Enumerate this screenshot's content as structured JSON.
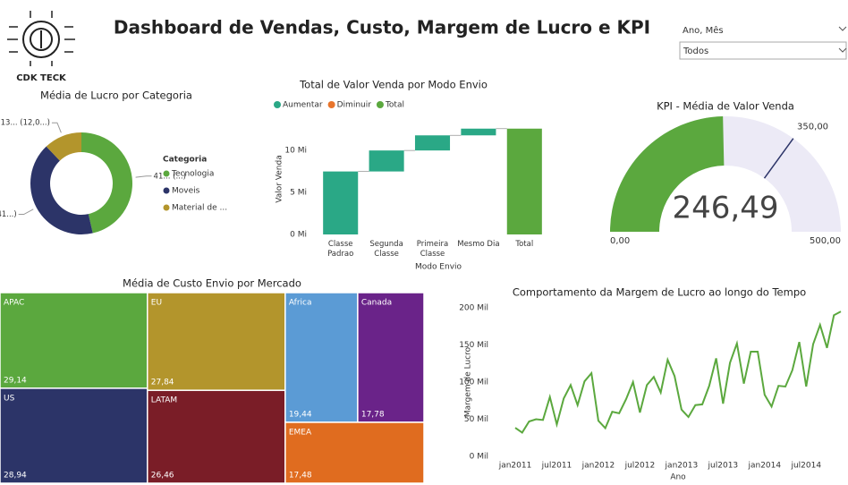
{
  "title": "Dashboard de Vendas, Custo, Margem de Lucro e KPI",
  "logo_text": "CDK TECK",
  "slicer": {
    "label": "Ano, Mês",
    "value": "Todos"
  },
  "chart_data": [
    {
      "type": "donut",
      "title": "Média de Lucro por Categoria",
      "legend_title": "Categoria",
      "categories": [
        "Tecnologia",
        "Moveis",
        "Material de ..."
      ],
      "values": [
        415,
        371,
        108.13
      ],
      "value_labels": [
        "41... (...)",
        "371,... (41...)",
        "108,13... (12,0...)"
      ],
      "colors": [
        "#5ba83e",
        "#2c3468",
        "#b3952c"
      ]
    },
    {
      "type": "waterfall",
      "title": "Total de Valor Venda por Modo Envio",
      "xlabel": "Modo Envio",
      "ylabel": "Valor Venda",
      "categories": [
        "Classe Padrao",
        "Segunda Classe",
        "Primeira Classe",
        "Mesmo Dia",
        "Total"
      ],
      "series": [
        {
          "name": "Aumentar",
          "color": "#2aa886",
          "values": [
            7.5,
            2.5,
            1.8,
            0.8,
            null
          ]
        },
        {
          "name": "Diminuir",
          "color": "#e8742b",
          "values": [
            null,
            null,
            null,
            null,
            null
          ]
        },
        {
          "name": "Total",
          "color": "#5ba83e",
          "values": [
            null,
            null,
            null,
            null,
            12.6
          ]
        }
      ],
      "ylim": [
        0,
        13
      ],
      "yticks": [
        {
          "value": 0,
          "label": "0 Mi"
        },
        {
          "value": 5,
          "label": "5 Mi"
        },
        {
          "value": 10,
          "label": "10 Mi"
        }
      ]
    },
    {
      "type": "gauge",
      "title": "KPI - Média de Valor Venda",
      "value": 246.49,
      "value_label": "246,49",
      "ylim": [
        0,
        500
      ],
      "yticks": [
        {
          "value": 0,
          "label": "0,00"
        },
        {
          "value": 500,
          "label": "500,00"
        }
      ],
      "target": {
        "value": 350,
        "label": "350,00"
      },
      "color": "#5ba83e",
      "track_color": "#eceaf6",
      "target_color": "#2c3468"
    },
    {
      "type": "treemap",
      "title": "Média de Custo Envio por Mercado",
      "categories": [
        "APAC",
        "US",
        "EU",
        "LATAM",
        "Africa",
        "Canada",
        "EMEA"
      ],
      "values": [
        29.14,
        28.94,
        27.84,
        26.46,
        19.44,
        17.78,
        17.48
      ],
      "value_labels": [
        "29,14",
        "28,94",
        "27,84",
        "26,46",
        "19,44",
        "17,78",
        "17,48"
      ],
      "colors": [
        "#5ba83e",
        "#2c3468",
        "#b3952c",
        "#7a1d27",
        "#5b9bd5",
        "#6a2389",
        "#e06c1f"
      ]
    },
    {
      "type": "line",
      "title": "Comportamento da Margem de Lucro ao longo do Tempo",
      "xlabel": "Ano",
      "ylabel": "Margem de Lucro",
      "categories": [
        "jan2011",
        null,
        null,
        null,
        null,
        null,
        "jul2011",
        null,
        null,
        null,
        null,
        null,
        "jan2012",
        null,
        null,
        null,
        null,
        null,
        "jul2012",
        null,
        null,
        null,
        null,
        null,
        "jan2013",
        null,
        null,
        null,
        null,
        null,
        "jul2013",
        null,
        null,
        null,
        null,
        null,
        "jan2014",
        null,
        null,
        null,
        null,
        null,
        "jul2014",
        null,
        null,
        null,
        null,
        null
      ],
      "values": [
        38.5,
        32,
        47,
        50,
        49,
        80,
        43,
        78,
        96,
        69,
        101,
        112,
        48,
        38,
        60,
        58,
        77,
        100,
        59,
        96,
        107,
        86,
        130,
        108,
        63,
        53,
        69,
        70,
        95,
        132,
        71,
        126,
        152,
        98,
        141,
        141,
        83,
        67,
        95,
        94,
        116,
        154,
        94,
        151,
        177,
        146,
        190,
        195
      ],
      "color": "#5ba83e",
      "ylim": [
        0,
        200
      ],
      "yticks": [
        {
          "value": 0,
          "label": "0 Mil"
        },
        {
          "value": 50,
          "label": "50 Mil"
        },
        {
          "value": 100,
          "label": "100 Mil"
        },
        {
          "value": 150,
          "label": "150 Mil"
        },
        {
          "value": 200,
          "label": "200 Mil"
        }
      ]
    }
  ]
}
